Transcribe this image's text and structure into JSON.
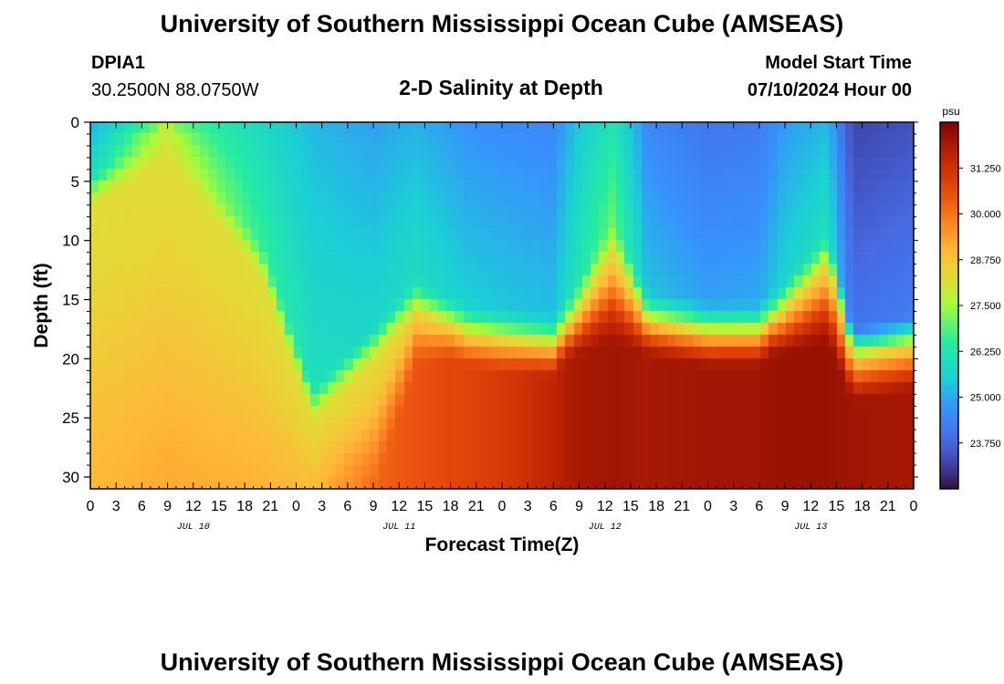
{
  "header": {
    "main_title": "University of Southern Mississippi Ocean Cube (AMSEAS)",
    "station_id": "DPIA1",
    "station_coords": "30.2500N  88.0750W",
    "chart_title": "2-D Salinity at Depth",
    "model_start_label": "Model Start Time",
    "model_start_value": "07/10/2024 Hour 00"
  },
  "footer": {
    "repeated_title": "University of Southern Mississippi Ocean Cube (AMSEAS)"
  },
  "chart_data": {
    "type": "heatmap",
    "title": "2-D Salinity at Depth",
    "xlabel": "Forecast Time(Z)",
    "ylabel": "Depth (ft)",
    "colorbar_unit": "psu",
    "x_hours_range": [
      0,
      96
    ],
    "y_range": [
      0,
      31
    ],
    "x_tick_labels": [
      "0",
      "3",
      "6",
      "9",
      "12",
      "15",
      "18",
      "21",
      "0",
      "3",
      "6",
      "9",
      "12",
      "15",
      "18",
      "21",
      "0",
      "3",
      "6",
      "9",
      "12",
      "15",
      "18",
      "21",
      "0",
      "3",
      "6",
      "9",
      "12",
      "15",
      "18",
      "21",
      "0"
    ],
    "y_tick_labels": [
      "0",
      "5",
      "10",
      "15",
      "20",
      "25",
      "30"
    ],
    "y_tick_values": [
      0,
      5,
      10,
      15,
      20,
      25,
      30
    ],
    "date_labels": [
      {
        "label": "JUL 10",
        "hour": 12
      },
      {
        "label": "JUL 11",
        "hour": 36
      },
      {
        "label": "JUL 12",
        "hour": 60
      },
      {
        "label": "JUL 13",
        "hour": 84
      }
    ],
    "colorbar_range": [
      22.5,
      32.5
    ],
    "colorbar_tick_values": [
      23.75,
      25.0,
      26.25,
      27.5,
      28.75,
      30.0,
      31.25
    ],
    "colorbar_tick_labels": [
      "23.750",
      "25.000",
      "26.250",
      "27.500",
      "28.750",
      "30.000",
      "31.250"
    ],
    "profile_hours": [
      0,
      9,
      20,
      26,
      33,
      38,
      44,
      48,
      54,
      57,
      61,
      65,
      72,
      78,
      81,
      86,
      89,
      96
    ],
    "profile_halocline_depth": [
      4,
      0,
      10,
      22,
      17,
      13,
      15,
      15.5,
      16,
      13,
      8,
      14,
      15,
      15,
      13,
      9,
      17,
      16
    ],
    "profile_surface_salinity": [
      25.0,
      27.0,
      25.8,
      25.2,
      24.9,
      25.1,
      24.7,
      24.6,
      24.5,
      25.4,
      26.2,
      24.5,
      24.1,
      24.2,
      24.8,
      25.2,
      23.2,
      23.4
    ],
    "profile_bottom_salinity": [
      29.0,
      29.2,
      29.1,
      29.0,
      30.2,
      30.5,
      30.8,
      31.0,
      31.6,
      31.9,
      32.0,
      31.9,
      32.0,
      32.0,
      32.1,
      32.1,
      32.0,
      31.9
    ],
    "profile_bottom_start_depth": [
      31,
      31,
      31,
      31,
      31,
      19,
      18,
      18,
      19,
      18,
      17,
      18,
      18,
      18,
      18,
      17,
      22,
      21
    ]
  }
}
